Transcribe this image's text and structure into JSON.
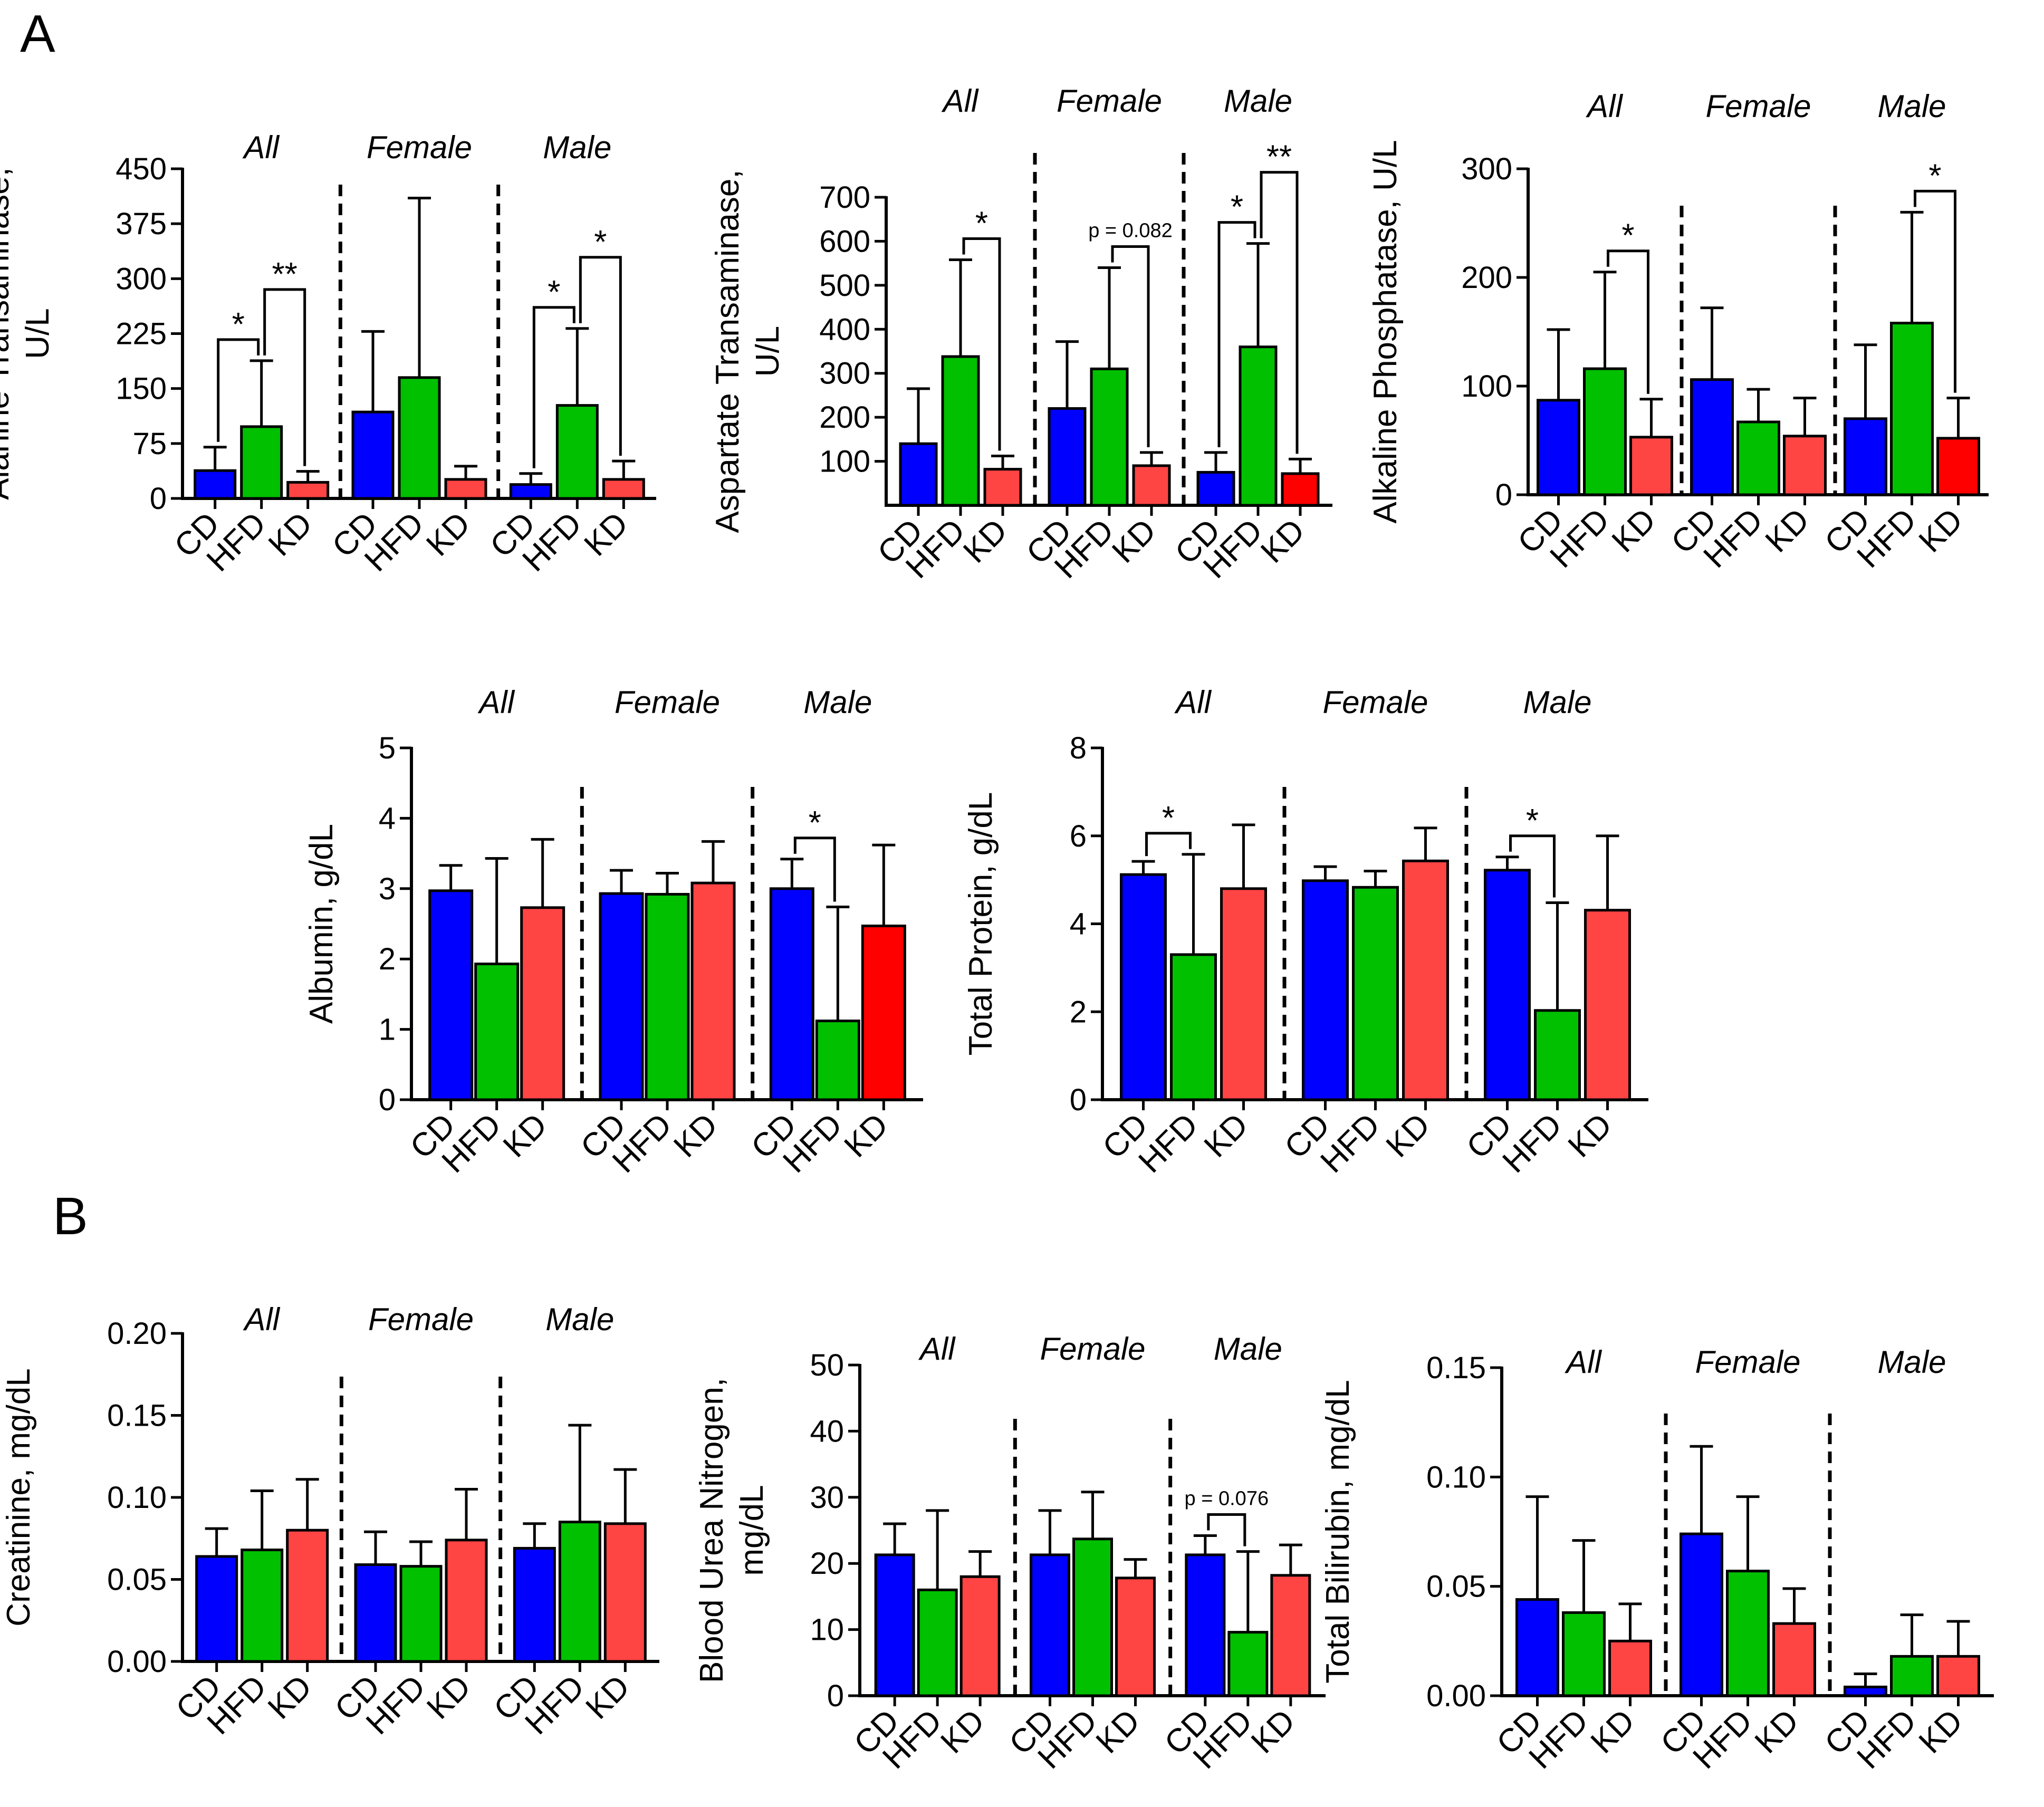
{
  "panel_labels": [
    "A",
    "B"
  ],
  "colors": {
    "CD": "#0000ff",
    "HFD": "#00c000",
    "KD": "#ff4444",
    "KD_dark": "#ff0000"
  },
  "chart_data": [
    {
      "id": "alt",
      "type": "bar",
      "title": "",
      "xlabel": "",
      "ylabel": [
        "Alanine Transaminase,",
        "U/L"
      ],
      "ylim": [
        0,
        450
      ],
      "yticks": [
        "0",
        "75",
        "150",
        "225",
        "300",
        "375",
        "450"
      ],
      "groups": [
        "All",
        "Female",
        "Male"
      ],
      "categories": [
        "CD",
        "HFD",
        "KD"
      ],
      "values": [
        [
          38,
          98,
          22
        ],
        [
          118,
          165,
          26
        ],
        [
          19,
          127,
          26
        ]
      ],
      "errors": [
        [
          70,
          188,
          37
        ],
        [
          228,
          410,
          44
        ],
        [
          34,
          232,
          51
        ]
      ],
      "annotations": [
        {
          "group": 0,
          "from": 0,
          "to": 1,
          "label": "*",
          "tier": 0
        },
        {
          "group": 0,
          "from": 1,
          "to": 2,
          "label": "**",
          "tier": 1
        },
        {
          "group": 2,
          "from": 0,
          "to": 1,
          "label": "*",
          "tier": 0
        },
        {
          "group": 2,
          "from": 1,
          "to": 2,
          "label": "*",
          "tier": 1
        }
      ]
    },
    {
      "id": "ast",
      "type": "bar",
      "title": "",
      "xlabel": "",
      "ylabel": [
        "Aspartate Transaminase,",
        "U/L"
      ],
      "ylim": [
        0,
        700
      ],
      "yticks": [
        "100",
        "200",
        "300",
        "400",
        "500",
        "600",
        "700"
      ],
      "groups": [
        "All",
        "Female",
        "Male"
      ],
      "categories": [
        "CD",
        "HFD",
        "KD"
      ],
      "values": [
        [
          140,
          338,
          82
        ],
        [
          220,
          310,
          90
        ],
        [
          75,
          360,
          72
        ]
      ],
      "errors": [
        [
          265,
          558,
          112
        ],
        [
          372,
          540,
          120
        ],
        [
          120,
          595,
          105
        ]
      ],
      "annotations": [
        {
          "group": 0,
          "from": 1,
          "to": 2,
          "label": "*",
          "tier": 0
        },
        {
          "group": 1,
          "from": 1,
          "to": 2,
          "label": "p = 0.082",
          "tier": 0
        },
        {
          "group": 2,
          "from": 0,
          "to": 1,
          "label": "*",
          "tier": 0
        },
        {
          "group": 2,
          "from": 1,
          "to": 2,
          "label": "**",
          "tier": 1
        }
      ]
    },
    {
      "id": "alp",
      "type": "bar",
      "title": "",
      "xlabel": "",
      "ylabel": [
        "Alkaline Phosphatase, U/L"
      ],
      "ylim": [
        0,
        300
      ],
      "yticks": [
        "0",
        "100",
        "200",
        "300"
      ],
      "groups": [
        "All",
        "Female",
        "Male"
      ],
      "categories": [
        "CD",
        "HFD",
        "KD"
      ],
      "values": [
        [
          87,
          116,
          53
        ],
        [
          106,
          67,
          54
        ],
        [
          70,
          158,
          52
        ]
      ],
      "errors": [
        [
          152,
          205,
          88
        ],
        [
          172,
          97,
          89
        ],
        [
          138,
          260,
          89
        ]
      ],
      "annotations": [
        {
          "group": 0,
          "from": 1,
          "to": 2,
          "label": "*",
          "tier": 0
        },
        {
          "group": 2,
          "from": 1,
          "to": 2,
          "label": "*",
          "tier": 0
        }
      ]
    },
    {
      "id": "alb",
      "type": "bar",
      "title": "",
      "xlabel": "",
      "ylabel": [
        "Albumin, g/dL"
      ],
      "ylim": [
        0,
        5
      ],
      "yticks": [
        "0",
        "1",
        "2",
        "3",
        "4",
        "5"
      ],
      "groups": [
        "All",
        "Female",
        "Male"
      ],
      "categories": [
        "CD",
        "HFD",
        "KD"
      ],
      "values": [
        [
          2.97,
          1.93,
          2.73
        ],
        [
          2.93,
          2.92,
          3.08
        ],
        [
          3.0,
          1.12,
          2.47
        ]
      ],
      "errors": [
        [
          3.33,
          3.43,
          3.7
        ],
        [
          3.26,
          3.22,
          3.67
        ],
        [
          3.42,
          2.74,
          3.62
        ]
      ],
      "annotations": [
        {
          "group": 2,
          "from": 0,
          "to": 1,
          "label": "*",
          "tier": 0
        }
      ]
    },
    {
      "id": "tp",
      "type": "bar",
      "title": "",
      "xlabel": "",
      "ylabel": [
        "Total Protein, g/dL"
      ],
      "ylim": [
        0,
        8
      ],
      "yticks": [
        "0",
        "2",
        "4",
        "6",
        "8"
      ],
      "groups": [
        "All",
        "Female",
        "Male"
      ],
      "categories": [
        "CD",
        "HFD",
        "KD"
      ],
      "values": [
        [
          5.12,
          3.3,
          4.8
        ],
        [
          4.98,
          4.83,
          5.43
        ],
        [
          5.22,
          2.03,
          4.31
        ]
      ],
      "errors": [
        [
          5.42,
          5.58,
          6.25
        ],
        [
          5.3,
          5.2,
          6.18
        ],
        [
          5.52,
          4.48,
          6.0
        ]
      ],
      "annotations": [
        {
          "group": 0,
          "from": 0,
          "to": 1,
          "label": "*",
          "tier": 0
        },
        {
          "group": 2,
          "from": 0,
          "to": 1,
          "label": "*",
          "tier": 0
        }
      ]
    },
    {
      "id": "cre",
      "type": "bar",
      "title": "",
      "xlabel": "",
      "ylabel": [
        "Creatinine, mg/dL"
      ],
      "ylim": [
        0,
        0.2
      ],
      "yticks": [
        "0.00",
        "0.05",
        "0.10",
        "0.15",
        "0.20"
      ],
      "groups": [
        "All",
        "Female",
        "Male"
      ],
      "categories": [
        "CD",
        "HFD",
        "KD"
      ],
      "values": [
        [
          0.064,
          0.068,
          0.08
        ],
        [
          0.059,
          0.058,
          0.074
        ],
        [
          0.069,
          0.085,
          0.084
        ]
      ],
      "errors": [
        [
          0.081,
          0.104,
          0.111
        ],
        [
          0.079,
          0.073,
          0.105
        ],
        [
          0.084,
          0.144,
          0.117
        ]
      ],
      "annotations": []
    },
    {
      "id": "bun",
      "type": "bar",
      "title": "",
      "xlabel": "",
      "ylabel": [
        "Blood Urea Nitrogen,",
        "mg/dL"
      ],
      "ylim": [
        0,
        50
      ],
      "yticks": [
        "0",
        "10",
        "20",
        "30",
        "40",
        "50"
      ],
      "groups": [
        "All",
        "Female",
        "Male"
      ],
      "categories": [
        "CD",
        "HFD",
        "KD"
      ],
      "values": [
        [
          21.3,
          16.0,
          18.0
        ],
        [
          21.3,
          23.7,
          17.8
        ],
        [
          21.3,
          9.6,
          18.2
        ]
      ],
      "errors": [
        [
          26.0,
          28.0,
          21.8
        ],
        [
          28.0,
          30.8,
          20.6
        ],
        [
          24.2,
          21.8,
          22.8
        ]
      ],
      "annotations": [
        {
          "group": 2,
          "from": 0,
          "to": 1,
          "label": "p = 0.076",
          "tier": 0
        }
      ]
    },
    {
      "id": "tbil",
      "type": "bar",
      "title": "",
      "xlabel": "",
      "ylabel": [
        "Total Bilirubin, mg/dL"
      ],
      "ylim": [
        0,
        0.15
      ],
      "yticks": [
        "0.00",
        "0.05",
        "0.10",
        "0.15"
      ],
      "groups": [
        "All",
        "Female",
        "Male"
      ],
      "categories": [
        "CD",
        "HFD",
        "KD"
      ],
      "values": [
        [
          0.044,
          0.038,
          0.025
        ],
        [
          0.074,
          0.057,
          0.033
        ],
        [
          0.004,
          0.018,
          0.018
        ]
      ],
      "errors": [
        [
          0.091,
          0.071,
          0.042
        ],
        [
          0.114,
          0.091,
          0.049
        ],
        [
          0.01,
          0.037,
          0.034
        ]
      ],
      "annotations": []
    }
  ]
}
